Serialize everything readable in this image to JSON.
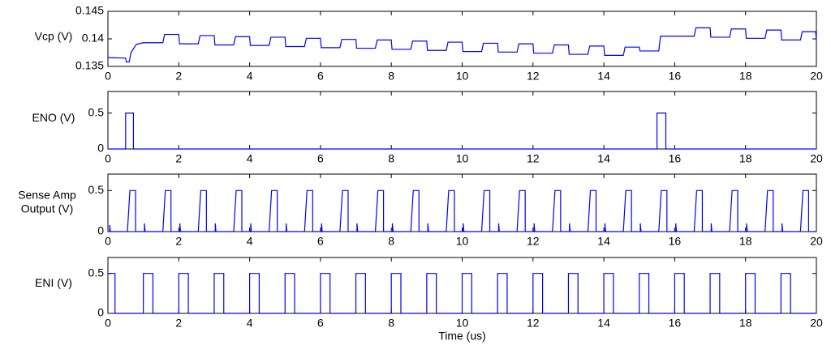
{
  "chart_data": [
    {
      "type": "line",
      "ylabel": "Vcp (V)",
      "color": "#0000ff",
      "xlim": [
        0,
        20
      ],
      "xticks": [
        0,
        2,
        4,
        6,
        8,
        10,
        12,
        14,
        16,
        18,
        20
      ],
      "ylim": [
        0.135,
        0.145
      ],
      "yticks": [
        0.135,
        0.14,
        0.145
      ],
      "x": [
        0,
        0.5,
        0.52,
        0.6,
        0.65,
        0.8,
        1,
        1.55,
        1.6,
        2,
        2.02,
        2.55,
        2.6,
        3,
        3.02,
        3.55,
        3.6,
        4,
        4.02,
        4.55,
        4.6,
        5,
        5.02,
        5.55,
        5.6,
        6,
        6.02,
        6.55,
        6.6,
        7,
        7.02,
        7.55,
        7.6,
        8,
        8.02,
        8.55,
        8.6,
        9,
        9.02,
        9.55,
        9.6,
        10,
        10.02,
        10.55,
        10.6,
        11,
        11.02,
        11.55,
        11.6,
        12,
        12.02,
        12.55,
        12.6,
        13,
        13.02,
        13.55,
        13.6,
        14,
        14.02,
        14.55,
        14.6,
        15,
        15.02,
        15.55,
        15.6,
        16,
        16.02,
        16.55,
        16.6,
        17,
        17.02,
        17.55,
        17.6,
        18,
        18.02,
        18.55,
        18.6,
        19,
        19.02,
        19.55,
        19.6,
        19.98,
        20
      ],
      "values": [
        0.1366,
        0.1365,
        0.1358,
        0.1358,
        0.1375,
        0.139,
        0.1393,
        0.1393,
        0.1408,
        0.1408,
        0.1391,
        0.1391,
        0.1406,
        0.1406,
        0.1389,
        0.1389,
        0.1404,
        0.1404,
        0.1388,
        0.1388,
        0.1403,
        0.1403,
        0.1386,
        0.1386,
        0.1401,
        0.1401,
        0.1384,
        0.1384,
        0.1399,
        0.1399,
        0.1383,
        0.1383,
        0.1398,
        0.1398,
        0.1381,
        0.1381,
        0.1396,
        0.1396,
        0.1379,
        0.1379,
        0.1394,
        0.1394,
        0.1377,
        0.1377,
        0.1392,
        0.1392,
        0.1376,
        0.1376,
        0.1391,
        0.1391,
        0.1374,
        0.1374,
        0.1389,
        0.1389,
        0.1372,
        0.1372,
        0.1387,
        0.1387,
        0.137,
        0.137,
        0.1385,
        0.1385,
        0.1378,
        0.1378,
        0.1405,
        0.1405,
        0.1405,
        0.1405,
        0.142,
        0.142,
        0.1403,
        0.1403,
        0.1418,
        0.1418,
        0.1401,
        0.1401,
        0.1416,
        0.1416,
        0.1398,
        0.1398,
        0.1413,
        0.1413,
        0.1396
      ]
    },
    {
      "type": "line",
      "ylabel": "ENO (V)",
      "color": "#0000ff",
      "xlim": [
        0,
        20
      ],
      "xticks": [
        0,
        2,
        4,
        6,
        8,
        10,
        12,
        14,
        16,
        18,
        20
      ],
      "ylim": [
        0,
        0.8
      ],
      "yticks": [
        0,
        0.5
      ],
      "x": [
        0,
        0.5,
        0.5,
        0.72,
        0.72,
        15.5,
        15.5,
        15.75,
        15.75,
        20
      ],
      "values": [
        0,
        0,
        0.5,
        0.5,
        0,
        0,
        0.5,
        0.5,
        0,
        0
      ]
    },
    {
      "type": "line",
      "ylabel": [
        "Sense Amp",
        "Output (V)"
      ],
      "color": "#0000ff",
      "xlim": [
        0,
        20
      ],
      "xticks": [
        0,
        2,
        4,
        6,
        8,
        10,
        12,
        14,
        16,
        18,
        20
      ],
      "ylim": [
        0,
        0.7
      ],
      "yticks": [
        0,
        0.5
      ],
      "x": [
        0,
        0.05,
        0.05,
        0.07,
        0.55,
        0.62,
        0.78,
        0.78,
        1.03,
        1.03,
        1.05,
        1.55,
        1.62,
        1.78,
        1.78,
        2.03,
        2.03,
        2.05,
        2.55,
        2.62,
        2.78,
        2.78,
        3.03,
        3.03,
        3.05,
        3.55,
        3.62,
        3.78,
        3.78,
        4.03,
        4.03,
        4.05,
        4.55,
        4.62,
        4.78,
        4.78,
        5.03,
        5.03,
        5.05,
        5.55,
        5.62,
        5.78,
        5.78,
        6.03,
        6.03,
        6.05,
        6.55,
        6.62,
        6.78,
        6.78,
        7.03,
        7.03,
        7.05,
        7.55,
        7.62,
        7.78,
        7.78,
        8.03,
        8.03,
        8.05,
        8.55,
        8.62,
        8.78,
        8.78,
        9.03,
        9.03,
        9.05,
        9.55,
        9.62,
        9.78,
        9.78,
        10.03,
        10.03,
        10.05,
        10.55,
        10.62,
        10.78,
        10.78,
        11.03,
        11.03,
        11.05,
        11.55,
        11.62,
        11.78,
        11.78,
        12.03,
        12.03,
        12.05,
        12.55,
        12.62,
        12.78,
        12.78,
        13.03,
        13.03,
        13.05,
        13.55,
        13.62,
        13.78,
        13.78,
        14.03,
        14.03,
        14.05,
        14.55,
        14.62,
        14.78,
        14.78,
        15.03,
        15.03,
        15.05,
        15.55,
        15.62,
        15.78,
        15.78,
        16.03,
        16.03,
        16.05,
        16.55,
        16.62,
        16.78,
        16.78,
        17.03,
        17.03,
        17.05,
        17.55,
        17.62,
        17.78,
        17.78,
        18.03,
        18.03,
        18.05,
        18.55,
        18.62,
        18.78,
        18.78,
        19.03,
        19.03,
        19.05,
        19.55,
        19.62,
        19.78,
        19.78,
        20
      ],
      "values": [
        0,
        0,
        0.08,
        0,
        0,
        0.5,
        0.5,
        0,
        0,
        0.1,
        0,
        0,
        0.5,
        0.5,
        0,
        0,
        0.1,
        0,
        0,
        0.5,
        0.5,
        0,
        0,
        0.1,
        0,
        0,
        0.5,
        0.5,
        0,
        0,
        0.1,
        0,
        0,
        0.5,
        0.5,
        0,
        0,
        0.1,
        0,
        0,
        0.5,
        0.5,
        0,
        0,
        0.1,
        0,
        0,
        0.5,
        0.5,
        0,
        0,
        0.1,
        0,
        0,
        0.5,
        0.5,
        0,
        0,
        0.1,
        0,
        0,
        0.5,
        0.5,
        0,
        0,
        0.1,
        0,
        0,
        0.5,
        0.5,
        0,
        0,
        0.1,
        0,
        0,
        0.5,
        0.5,
        0,
        0,
        0.1,
        0,
        0,
        0.5,
        0.5,
        0,
        0,
        0.1,
        0,
        0,
        0.5,
        0.5,
        0,
        0,
        0.1,
        0,
        0,
        0.5,
        0.5,
        0,
        0,
        0.1,
        0,
        0,
        0.5,
        0.5,
        0,
        0,
        0.1,
        0,
        0,
        0.5,
        0.5,
        0,
        0,
        0.1,
        0,
        0,
        0.5,
        0.5,
        0,
        0,
        0.1,
        0,
        0,
        0.5,
        0.5,
        0,
        0,
        0.1,
        0,
        0,
        0.5,
        0.5,
        0,
        0,
        0.1,
        0,
        0,
        0.5,
        0.5,
        0,
        0
      ]
    },
    {
      "type": "line",
      "ylabel": "ENI (V)",
      "xlabel": "Time (us)",
      "color": "#0000ff",
      "xlim": [
        0,
        20
      ],
      "xticks": [
        0,
        2,
        4,
        6,
        8,
        10,
        12,
        14,
        16,
        18,
        20
      ],
      "ylim": [
        0,
        0.7
      ],
      "yticks": [
        0,
        0.5
      ],
      "x": [
        0,
        0.2,
        0.2,
        1,
        1,
        1.27,
        1.27,
        2,
        2,
        2.27,
        2.27,
        3,
        3,
        3.27,
        3.27,
        4,
        4,
        4.27,
        4.27,
        5,
        5,
        5.27,
        5.27,
        6,
        6,
        6.27,
        6.27,
        7,
        7,
        7.27,
        7.27,
        8,
        8,
        8.27,
        8.27,
        9,
        9,
        9.27,
        9.27,
        10,
        10,
        10.27,
        10.27,
        11,
        11,
        11.27,
        11.27,
        12,
        12,
        12.27,
        12.27,
        13,
        13,
        13.27,
        13.27,
        14,
        14,
        14.27,
        14.27,
        15,
        15,
        15.27,
        15.27,
        16,
        16,
        16.27,
        16.27,
        17,
        17,
        17.27,
        17.27,
        18,
        18,
        18.27,
        18.27,
        19,
        19,
        19.27,
        19.27,
        20
      ],
      "values": [
        0.5,
        0.5,
        0,
        0,
        0.5,
        0.5,
        0,
        0,
        0.5,
        0.5,
        0,
        0,
        0.5,
        0.5,
        0,
        0,
        0.5,
        0.5,
        0,
        0,
        0.5,
        0.5,
        0,
        0,
        0.5,
        0.5,
        0,
        0,
        0.5,
        0.5,
        0,
        0,
        0.5,
        0.5,
        0,
        0,
        0.5,
        0.5,
        0,
        0,
        0.5,
        0.5,
        0,
        0,
        0.5,
        0.5,
        0,
        0,
        0.5,
        0.5,
        0,
        0,
        0.5,
        0.5,
        0,
        0,
        0.5,
        0.5,
        0,
        0,
        0.5,
        0.5,
        0,
        0,
        0.5,
        0.5,
        0,
        0,
        0.5,
        0.5,
        0,
        0,
        0.5,
        0.5,
        0,
        0,
        0.5,
        0.5,
        0,
        0
      ]
    }
  ]
}
